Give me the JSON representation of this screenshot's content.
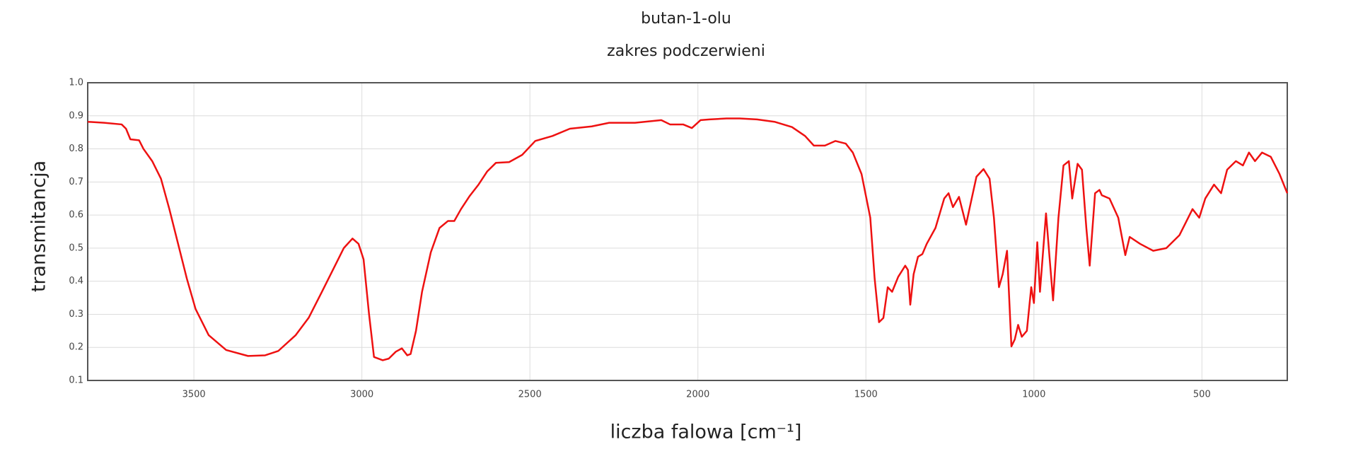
{
  "chart_data": {
    "type": "line",
    "title": "butan-1-olu",
    "subtitle": "zakres podczerwieni",
    "x_label": "liczba falowa [cm⁻¹]",
    "y_label": "transmitancja",
    "xlim": [
      3816,
      246
    ],
    "ylim": [
      0.1,
      1.0
    ],
    "xticks": [
      3500,
      3000,
      2500,
      2000,
      1500,
      1000,
      500
    ],
    "yticks": [
      0.1,
      0.2,
      0.3,
      0.4,
      0.5,
      0.6,
      0.7,
      0.8,
      0.9,
      {
        "value": 1,
        "label": "1.0"
      }
    ],
    "grid": true,
    "x": [
      3816,
      3767,
      3715,
      3702,
      3689,
      3663,
      3650,
      3624,
      3598,
      3573,
      3547,
      3521,
      3495,
      3456,
      3404,
      3339,
      3288,
      3249,
      3197,
      3158,
      3119,
      3080,
      3054,
      3028,
      3010,
      2995,
      2979,
      2964,
      2938,
      2920,
      2899,
      2881,
      2865,
      2855,
      2839,
      2821,
      2795,
      2769,
      2744,
      2725,
      2705,
      2679,
      2653,
      2627,
      2601,
      2562,
      2523,
      2484,
      2433,
      2381,
      2316,
      2264,
      2187,
      2109,
      2083,
      2044,
      2018,
      1992,
      1966,
      1915,
      1876,
      1824,
      1772,
      1720,
      1681,
      1655,
      1622,
      1591,
      1560,
      1539,
      1513,
      1487,
      1474,
      1461,
      1448,
      1435,
      1422,
      1404,
      1383,
      1375,
      1368,
      1358,
      1345,
      1332,
      1319,
      1293,
      1267,
      1254,
      1241,
      1223,
      1202,
      1189,
      1171,
      1150,
      1132,
      1119,
      1104,
      1093,
      1080,
      1067,
      1057,
      1047,
      1036,
      1021,
      1008,
      1000,
      990,
      982,
      964,
      953,
      943,
      927,
      912,
      896,
      886,
      870,
      857,
      844,
      834,
      818,
      805,
      798,
      775,
      749,
      728,
      715,
      684,
      645,
      606,
      567,
      528,
      508,
      490,
      464,
      443,
      425,
      399,
      378,
      360,
      342,
      321,
      295,
      269,
      246
    ],
    "series": [
      {
        "color": "#ee1111",
        "values": [
          0.882,
          0.879,
          0.874,
          0.861,
          0.829,
          0.826,
          0.8,
          0.763,
          0.71,
          0.618,
          0.513,
          0.408,
          0.316,
          0.237,
          0.192,
          0.174,
          0.176,
          0.189,
          0.237,
          0.29,
          0.368,
          0.447,
          0.5,
          0.529,
          0.513,
          0.466,
          0.303,
          0.171,
          0.161,
          0.166,
          0.187,
          0.197,
          0.176,
          0.18,
          0.25,
          0.368,
          0.487,
          0.561,
          0.582,
          0.582,
          0.618,
          0.658,
          0.692,
          0.732,
          0.758,
          0.76,
          0.782,
          0.824,
          0.839,
          0.861,
          0.868,
          0.879,
          0.879,
          0.887,
          0.874,
          0.874,
          0.863,
          0.887,
          0.889,
          0.892,
          0.892,
          0.889,
          0.882,
          0.866,
          0.839,
          0.81,
          0.81,
          0.824,
          0.816,
          0.789,
          0.724,
          0.592,
          0.408,
          0.276,
          0.289,
          0.382,
          0.368,
          0.413,
          0.447,
          0.434,
          0.329,
          0.421,
          0.474,
          0.482,
          0.513,
          0.561,
          0.65,
          0.666,
          0.624,
          0.655,
          0.571,
          0.632,
          0.716,
          0.739,
          0.71,
          0.592,
          0.382,
          0.421,
          0.492,
          0.203,
          0.224,
          0.268,
          0.232,
          0.25,
          0.382,
          0.334,
          0.518,
          0.368,
          0.605,
          0.466,
          0.342,
          0.592,
          0.75,
          0.763,
          0.65,
          0.755,
          0.737,
          0.561,
          0.447,
          0.666,
          0.676,
          0.66,
          0.65,
          0.592,
          0.479,
          0.534,
          0.513,
          0.492,
          0.5,
          0.539,
          0.618,
          0.592,
          0.65,
          0.692,
          0.666,
          0.737,
          0.763,
          0.75,
          0.789,
          0.763,
          0.789,
          0.776,
          0.724,
          0.666
        ]
      }
    ]
  }
}
